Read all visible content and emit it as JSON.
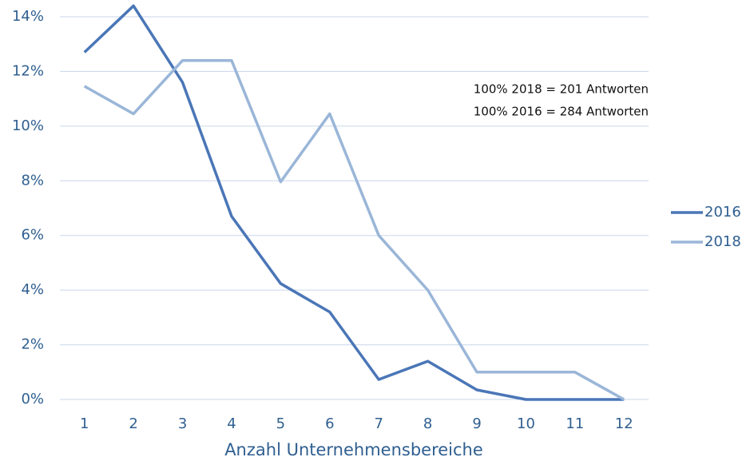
{
  "chart_data": {
    "type": "line",
    "x_label": "Anzahl Unternehmensbereiche",
    "annotations": [
      "100% 2018 = 201 Antworten",
      "100% 2016 = 284 Antworten"
    ],
    "categories": [
      "1",
      "2",
      "3",
      "4",
      "5",
      "6",
      "7",
      "8",
      "9",
      "10",
      "11",
      "12"
    ],
    "series": [
      {
        "name": "2016",
        "color": "#4a76b7",
        "values": [
          12.7,
          14.4,
          11.6,
          6.7,
          4.24,
          3.2,
          0.73,
          1.4,
          0.35,
          0,
          0,
          0
        ]
      },
      {
        "name": "2018",
        "color": "#9ab6d8",
        "values": [
          11.46,
          10.45,
          12.4,
          12.4,
          7.96,
          10.45,
          6.0,
          4.0,
          1.0,
          1.0,
          1.0,
          0
        ]
      }
    ],
    "ylim": [
      0,
      14
    ],
    "yticks": [
      {
        "value": 0,
        "label": "0%"
      },
      {
        "value": 2,
        "label": "2%"
      },
      {
        "value": 4,
        "label": "4%"
      },
      {
        "value": 6,
        "label": "6%"
      },
      {
        "value": 8,
        "label": "8%"
      },
      {
        "value": 10,
        "label": "10%"
      },
      {
        "value": 12,
        "label": "12%"
      },
      {
        "value": 14,
        "label": "14%"
      }
    ],
    "grid": true,
    "legend": "right"
  }
}
